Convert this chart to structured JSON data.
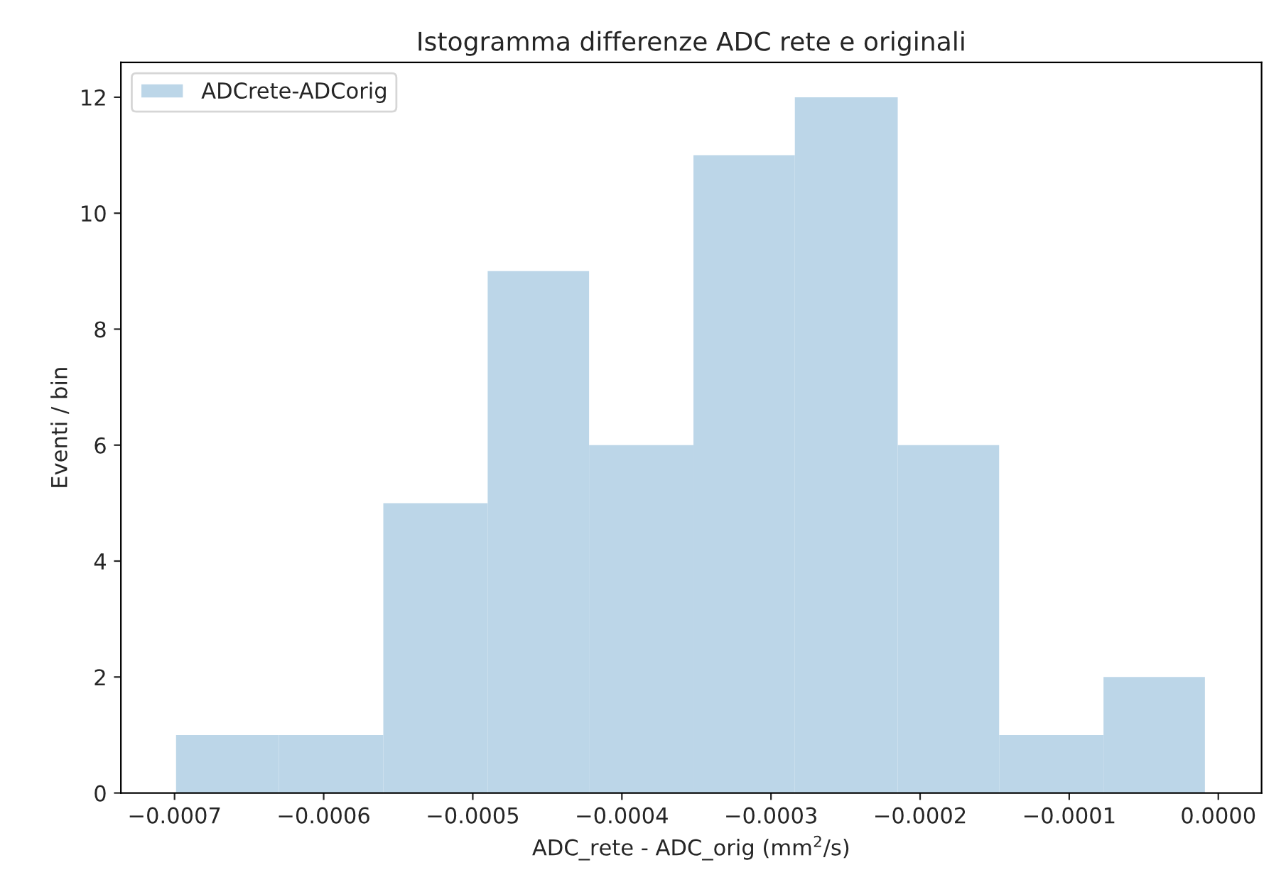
{
  "chart_data": {
    "type": "histogram",
    "title": "Istogramma differenze ADC rete e originali",
    "xlabel": "ADC_rete - ADC_orig (mm$^{2}$/s)",
    "ylabel": "Eventi / bin",
    "bins": [
      -0.000699,
      -0.00063,
      -0.00056,
      -0.00049,
      -0.000422,
      -0.000352,
      -0.000284,
      -0.000215,
      -0.000147,
      -7.7e-05,
      -9e-06
    ],
    "series": [
      {
        "name": "ADCrete-ADCorig",
        "color": "#bcd6e8",
        "values": [
          1,
          1,
          5,
          9,
          6,
          11,
          12,
          6,
          1,
          2
        ]
      }
    ],
    "xlim": [
      -0.000736,
      2.9e-05
    ],
    "ylim": [
      0,
      12.6
    ],
    "xticks": [
      {
        "value": -0.0007,
        "label": "−0.0007"
      },
      {
        "value": -0.0006,
        "label": "−0.0006"
      },
      {
        "value": -0.0005,
        "label": "−0.0005"
      },
      {
        "value": -0.0004,
        "label": "−0.0004"
      },
      {
        "value": -0.0003,
        "label": "−0.0003"
      },
      {
        "value": -0.0002,
        "label": "−0.0002"
      },
      {
        "value": -0.0001,
        "label": "−0.0001"
      },
      {
        "value": 0.0,
        "label": "0.0000"
      }
    ],
    "yticks": [
      0,
      2,
      4,
      6,
      8,
      10,
      12
    ],
    "grid": false,
    "legend": "top left"
  }
}
